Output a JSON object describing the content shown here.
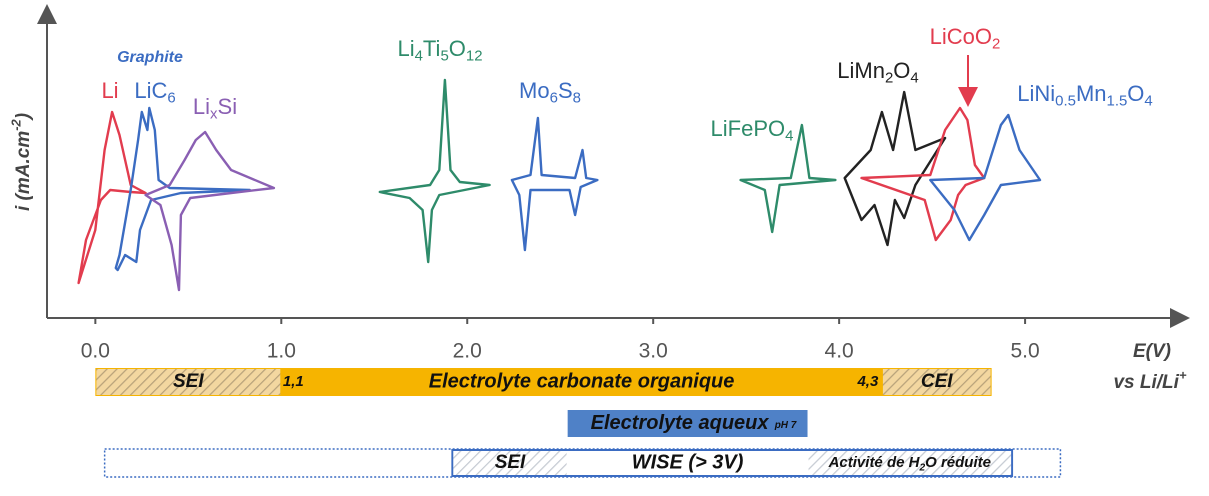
{
  "chart_data": {
    "type": "line",
    "x_label": "E(V)",
    "x_sublabel": {
      "parts": [
        "vs Li/Li",
        "+"
      ],
      "shift": "sup"
    },
    "y_label": {
      "parts": [
        "i (mA.cm",
        "-2",
        ")"
      ],
      "shift": "sup"
    },
    "xlim": [
      -0.26,
      5.86
    ],
    "ylim": [
      -1.29,
      1.79
    ],
    "xticks": [
      {
        "value": 0,
        "label": "0.0"
      },
      {
        "value": 1,
        "label": "1.0"
      },
      {
        "value": 2,
        "label": "2.0"
      },
      {
        "value": 3,
        "label": "3.0"
      },
      {
        "value": 4,
        "label": "4.0"
      },
      {
        "value": 5,
        "label": "5.0"
      }
    ],
    "annotation": "Graphite",
    "series": [
      {
        "name": {
          "parts": [
            "Li"
          ]
        },
        "color": "#e23c4e",
        "x": [
          -0.09,
          0,
          0.05,
          0.09,
          0.13,
          0.19,
          0.27,
          0.19,
          0.08,
          0.03,
          -0.05
        ],
        "values": [
          -0.94,
          -0.41,
          0.39,
          0.77,
          0.54,
          0.04,
          -0.04,
          -0.03,
          -0.01,
          -0.11,
          -0.51
        ]
      },
      {
        "name": {
          "parts": [
            "LiC",
            "6"
          ],
          "shift": "sub"
        },
        "color": "#3b6cc2",
        "x": [
          0.11,
          0.13,
          0.19,
          0.23,
          0.25,
          0.28,
          0.29,
          0.32,
          0.34,
          0.4,
          0.83,
          0.46,
          0.3,
          0.24,
          0.22,
          0.16,
          0.12
        ],
        "values": [
          -0.79,
          -0.66,
          -0.01,
          0.49,
          0.77,
          0.59,
          0.81,
          0.59,
          0.09,
          0.01,
          -0.01,
          -0.04,
          -0.11,
          -0.41,
          -0.73,
          -0.66,
          -0.81
        ]
      },
      {
        "name": {
          "parts": [
            "Li",
            "x",
            "Si"
          ],
          "shift": "sub"
        },
        "color": "#8a5fb3",
        "x": [
          0.4,
          0.48,
          0.54,
          0.59,
          0.65,
          0.73,
          0.96,
          0.73,
          0.51,
          0.46,
          0.45,
          0.41,
          0.35,
          0.27
        ],
        "values": [
          0.04,
          0.29,
          0.49,
          0.57,
          0.39,
          0.19,
          0.01,
          -0.04,
          -0.09,
          -0.26,
          -1.01,
          -0.56,
          -0.16,
          -0.06
        ]
      },
      {
        "name": {
          "parts": [
            "Li",
            "4",
            "Ti",
            "5",
            "O",
            "12"
          ],
          "shift": "sub"
        },
        "color": "#2e8b6a",
        "x": [
          1.53,
          1.8,
          1.85,
          1.88,
          1.91,
          1.96,
          2.12,
          1.85,
          1.81,
          1.79,
          1.76,
          1.69
        ],
        "values": [
          -0.03,
          0.04,
          0.19,
          1.09,
          0.19,
          0.07,
          0.04,
          -0.06,
          -0.21,
          -0.73,
          -0.21,
          -0.09
        ]
      },
      {
        "name": {
          "parts": [
            "Mo",
            "6",
            "S",
            "8"
          ],
          "shift": "sub"
        },
        "color": "#3b6cc2",
        "x": [
          2.24,
          2.34,
          2.38,
          2.4,
          2.58,
          2.62,
          2.64,
          2.7,
          2.61,
          2.58,
          2.55,
          2.34,
          2.31,
          2.28
        ],
        "values": [
          0.09,
          0.14,
          0.71,
          0.14,
          0.11,
          0.39,
          0.11,
          0.09,
          0.02,
          -0.26,
          -0.01,
          -0.01,
          -0.61,
          -0.06
        ]
      },
      {
        "name": {
          "parts": [
            "LiFePO",
            "4"
          ],
          "shift": "sub"
        },
        "color": "#2e8b6a",
        "x": [
          3.47,
          3.74,
          3.8,
          3.84,
          3.98,
          3.68,
          3.64,
          3.6
        ],
        "values": [
          0.09,
          0.11,
          0.64,
          0.11,
          0.09,
          0.04,
          -0.43,
          -0.01
        ]
      },
      {
        "name": {
          "parts": [
            "LiMn",
            "2",
            "O",
            "4"
          ],
          "shift": "sub"
        },
        "color": "#222222",
        "x": [
          4.03,
          4.17,
          4.23,
          4.29,
          4.35,
          4.41,
          4.57,
          4.41,
          4.35,
          4.3,
          4.26,
          4.19,
          4.12
        ],
        "values": [
          0.11,
          0.39,
          0.77,
          0.39,
          0.97,
          0.39,
          0.51,
          0.04,
          -0.29,
          -0.11,
          -0.56,
          -0.16,
          -0.31
        ]
      },
      {
        "name": {
          "parts": [
            "LiCoO",
            "2"
          ],
          "shift": "sub"
        },
        "color": "#e23c4e",
        "x": [
          4.12,
          4.49,
          4.57,
          4.65,
          4.69,
          4.73,
          4.78,
          4.68,
          4.64,
          4.6,
          4.52,
          4.46
        ],
        "values": [
          0.11,
          0.14,
          0.59,
          0.81,
          0.69,
          0.24,
          0.11,
          0.04,
          -0.06,
          -0.31,
          -0.51,
          -0.11
        ]
      },
      {
        "name": {
          "parts": [
            "LiNi",
            "0.5",
            "Mn",
            "1.5",
            "O",
            "4"
          ],
          "shift": "sub"
        },
        "color": "#3b6cc2",
        "x": [
          4.49,
          4.78,
          4.87,
          4.91,
          4.97,
          5.08,
          4.87,
          4.78,
          4.7,
          4.62
        ],
        "values": [
          0.09,
          0.11,
          0.64,
          0.74,
          0.39,
          0.09,
          0.04,
          -0.26,
          -0.51,
          -0.21
        ]
      }
    ],
    "bands": [
      {
        "label": "Electrolyte carbonate organique",
        "start": 0,
        "end": 4.82,
        "color": "#f6b400",
        "hatches": [
          {
            "label": {
              "parts": [
                "SEI"
              ]
            },
            "start": 0,
            "end": 1.0
          },
          {
            "label": {
              "parts": [
                "CEI"
              ]
            },
            "start": 4.23,
            "end": 4.82
          }
        ],
        "limit_labels": [
          "1,1",
          "4,3"
        ]
      },
      {
        "label": "Electrolyte aqueux",
        "note": "pH 7",
        "start": 2.54,
        "end": 3.83,
        "color": "#4f81c7"
      },
      {
        "label": "WISE (> 3V)",
        "start": 1.92,
        "end": 4.93,
        "outer_start": 0.05,
        "outer_end": 5.19,
        "color": "#3b6cc2",
        "hatches": [
          {
            "label": {
              "parts": [
                "SEI"
              ]
            },
            "start": 1.92,
            "end": 2.54
          },
          {
            "label": {
              "parts": [
                "Activité de H",
                "2",
                "O réduite"
              ],
              "shift": "sub"
            },
            "start": 3.83,
            "end": 4.93
          }
        ]
      }
    ]
  }
}
